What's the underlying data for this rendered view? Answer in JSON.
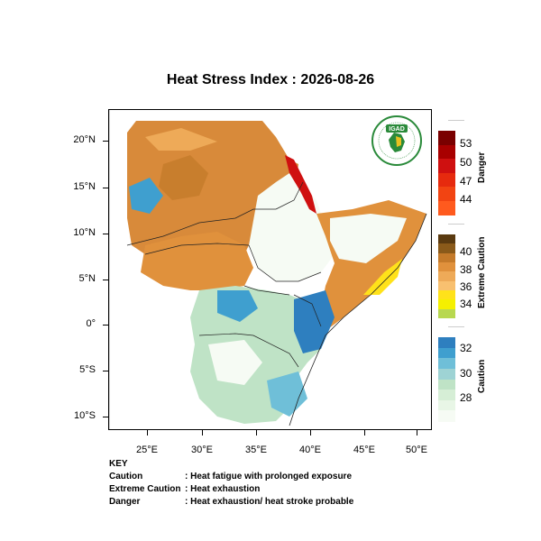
{
  "title": "Heat Stress Index : 2026-08-26",
  "map": {
    "lat_labels": [
      "20°N",
      "15°N",
      "10°N",
      "5°N",
      "0°",
      "5°S",
      "10°S"
    ],
    "lon_labels": [
      "25°E",
      "30°E",
      "35°E",
      "40°E",
      "45°E",
      "50°E"
    ],
    "logo_text": "IGAD"
  },
  "colorbars": {
    "danger": {
      "title": "Danger",
      "labels": [
        "53",
        "50",
        "47",
        "44"
      ],
      "colors": [
        "#7a0000",
        "#a80000",
        "#cf1010",
        "#e62a0e",
        "#f24412",
        "#ff5a1e"
      ]
    },
    "extreme_caution": {
      "title": "Extreme Caution",
      "labels": [
        "40",
        "38",
        "36",
        "34"
      ],
      "colors": [
        "#5a3a10",
        "#8a5a1a",
        "#c47a2a",
        "#e0913c",
        "#eeaa58",
        "#f8c070",
        "#ffe21a",
        "#f5f000",
        "#b8d850"
      ]
    },
    "caution": {
      "title": "Caution",
      "labels": [
        "32",
        "30",
        "28"
      ],
      "colors": [
        "#2e7fbf",
        "#3f9fcf",
        "#6fbfd8",
        "#9ed3d4",
        "#bfe3c6",
        "#d6eed6",
        "#e8f6e6",
        "#f6fbf4"
      ]
    }
  },
  "key": {
    "heading": "KEY",
    "rows": [
      {
        "term": "Caution",
        "desc": ": Heat fatigue with prolonged exposure"
      },
      {
        "term": "Extreme Caution",
        "desc": ": Heat exhaustion"
      },
      {
        "term": "Danger",
        "desc": ": Heat exhaustion/ heat stroke probable"
      }
    ]
  }
}
